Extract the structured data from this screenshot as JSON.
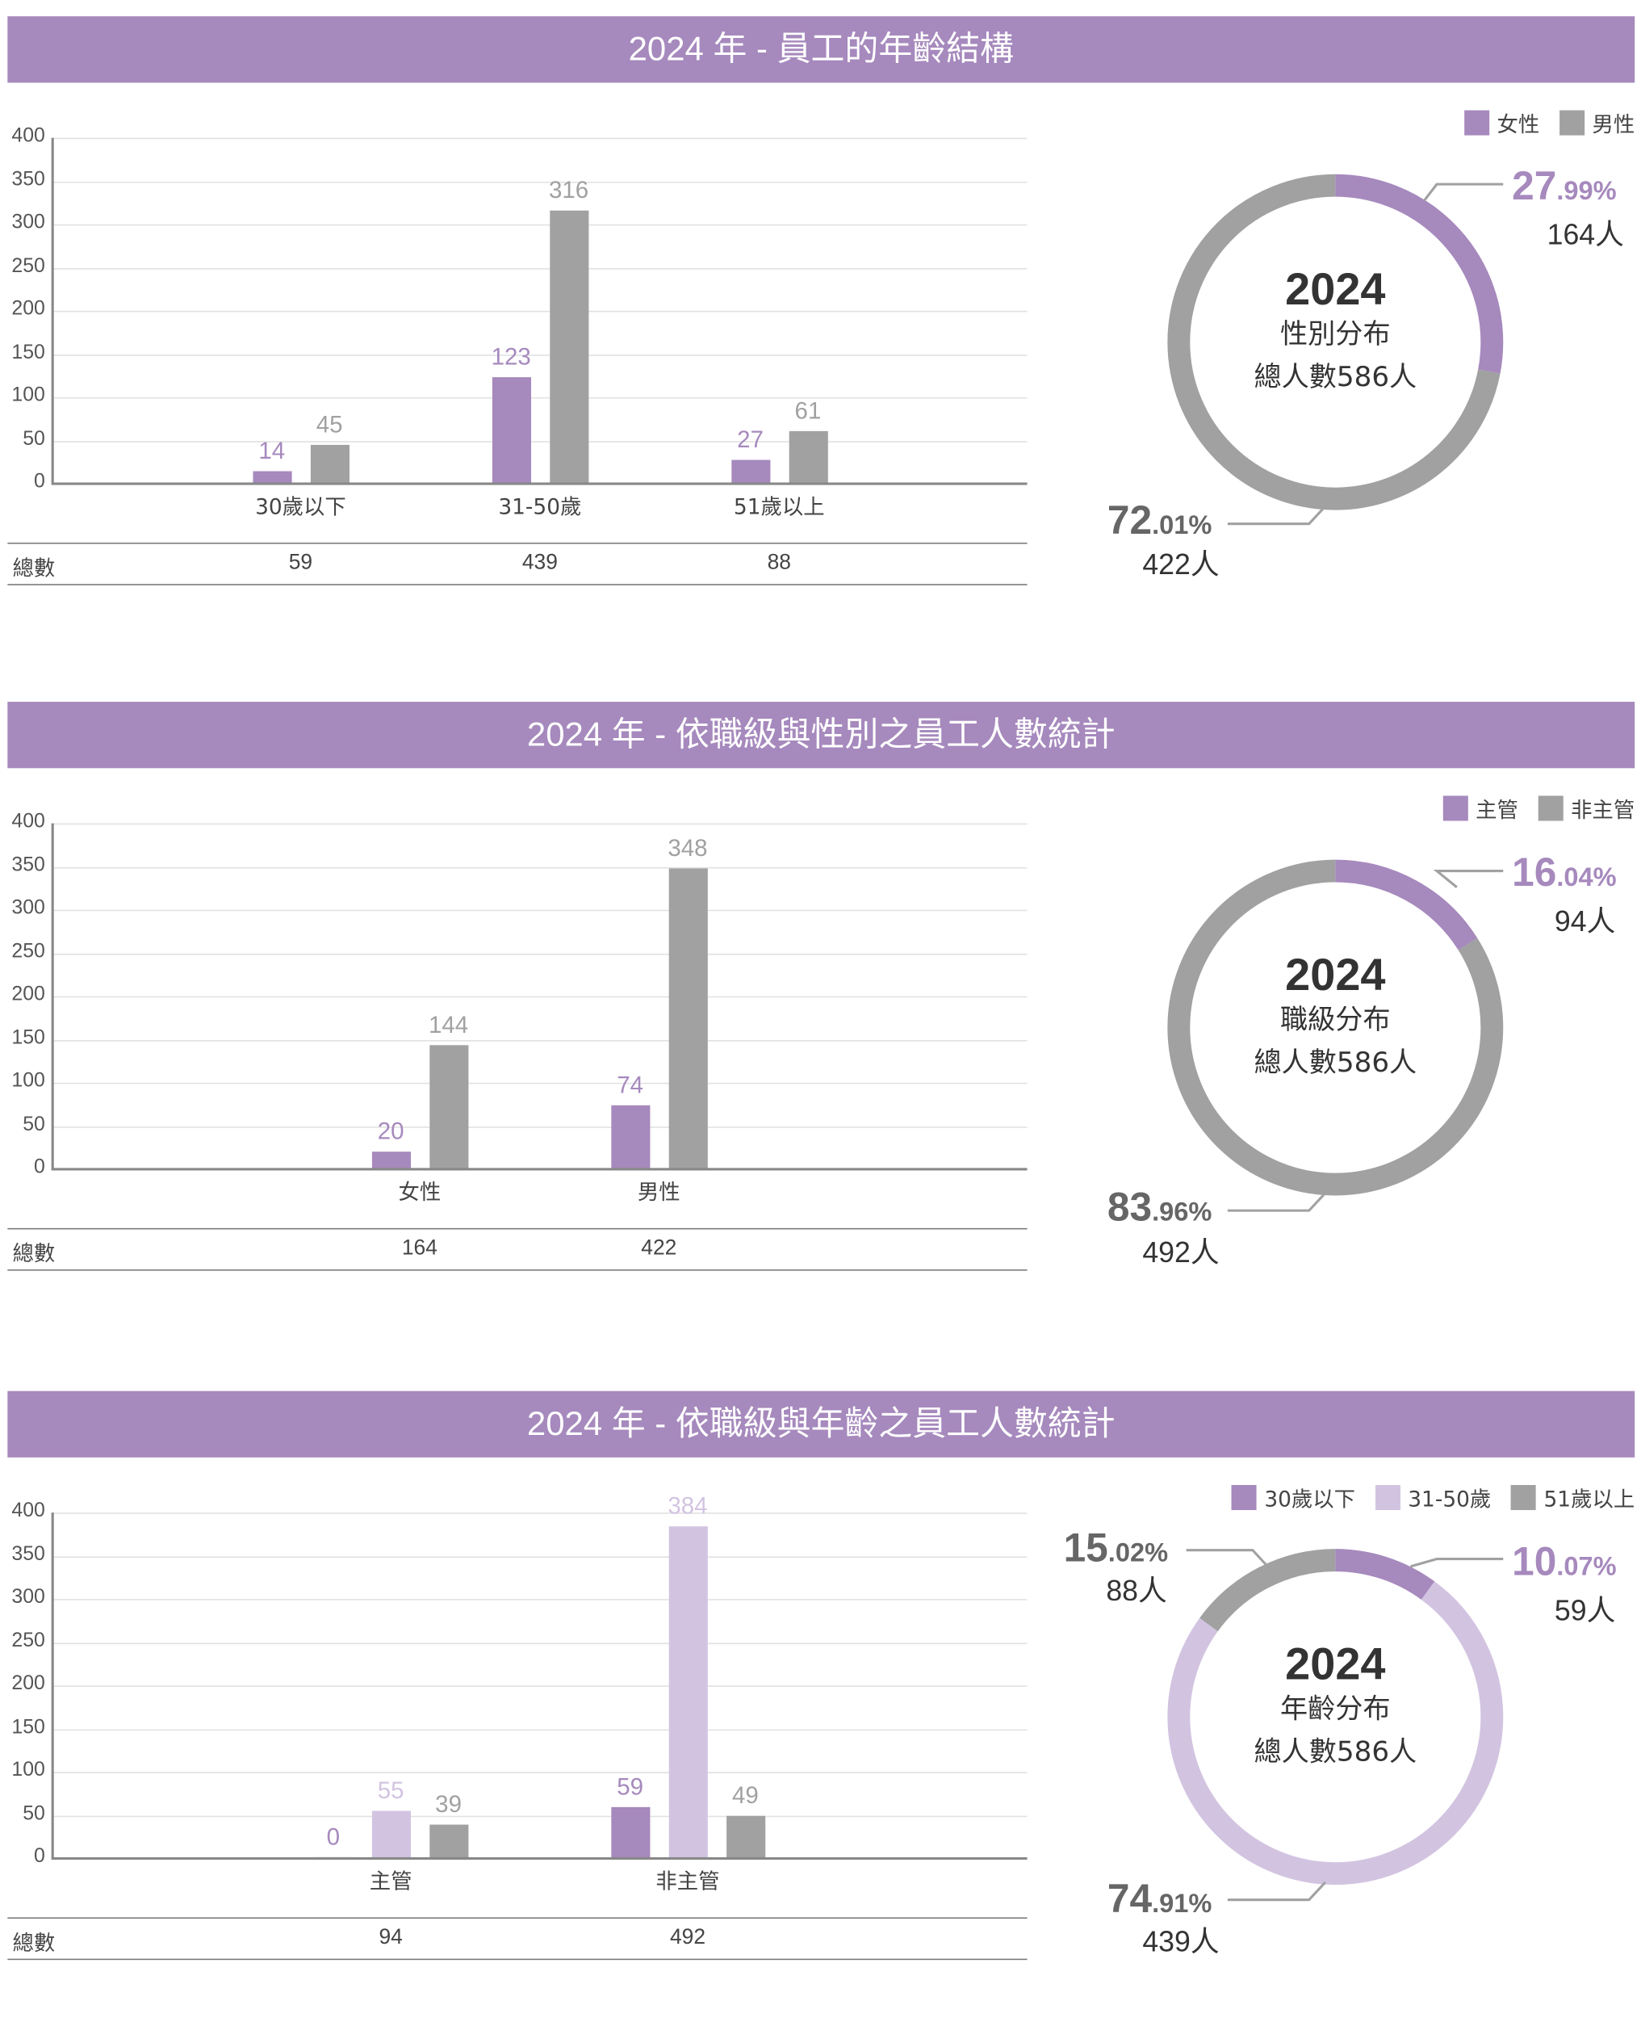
{
  "colors": {
    "header": "#a689bd",
    "purple": "#a689bd",
    "gray": "#a0a1a0",
    "light_purple": "#d2c4e1"
  },
  "sections": [
    {
      "title": "2024 年 - 員工的年齡結構",
      "legend": [
        {
          "label": "女性",
          "color": "#a689bd"
        },
        {
          "label": "男性",
          "color": "#a0a1a0"
        }
      ],
      "donut": {
        "year": "2024",
        "subtitle": "性別分布",
        "total_label": "總人數586人",
        "segments": [
          {
            "name": "女性",
            "percent": 27.99,
            "pct_int": "27",
            "pct_dec": ".99%",
            "count": "164人",
            "color": "#a689bd"
          },
          {
            "name": "男性",
            "percent": 72.01,
            "pct_int": "72",
            "pct_dec": ".01%",
            "count": "422人",
            "color": "#a0a1a0"
          }
        ]
      }
    },
    {
      "title": "2024 年 - 依職級與性別之員工人數統計",
      "legend": [
        {
          "label": "主管",
          "color": "#a689bd"
        },
        {
          "label": "非主管",
          "color": "#a0a1a0"
        }
      ],
      "donut": {
        "year": "2024",
        "subtitle": "職級分布",
        "total_label": "總人數586人",
        "segments": [
          {
            "name": "主管",
            "percent": 16.04,
            "pct_int": "16",
            "pct_dec": ".04%",
            "count": "94人",
            "color": "#a689bd"
          },
          {
            "name": "非主管",
            "percent": 83.96,
            "pct_int": "83",
            "pct_dec": ".96%",
            "count": "492人",
            "color": "#a0a1a0"
          }
        ]
      }
    },
    {
      "title": "2024 年 - 依職級與年齡之員工人數統計",
      "legend": [
        {
          "label": "30歲以下",
          "color": "#a689bd"
        },
        {
          "label": "31-50歲",
          "color": "#d2c4e1"
        },
        {
          "label": "51歲以上",
          "color": "#a0a1a0"
        }
      ],
      "donut": {
        "year": "2024",
        "subtitle": "年齡分布",
        "total_label": "總人數586人",
        "segments": [
          {
            "name": "30歲以下",
            "percent": 10.07,
            "pct_int": "10",
            "pct_dec": ".07%",
            "count": "59人",
            "color": "#a689bd"
          },
          {
            "name": "31-50歲",
            "percent": 74.91,
            "pct_int": "74",
            "pct_dec": ".91%",
            "count": "439人",
            "color": "#d2c4e1"
          },
          {
            "name": "51歲以上",
            "percent": 15.02,
            "pct_int": "15",
            "pct_dec": ".02%",
            "count": "88人",
            "color": "#a0a1a0"
          }
        ]
      }
    }
  ],
  "chart_data": [
    {
      "type": "bar",
      "title": "2024 年 - 員工的年齡結構",
      "categories": [
        "30歲以下",
        "31-50歲",
        "51歲以上"
      ],
      "series": [
        {
          "name": "女性",
          "values": [
            14,
            123,
            27
          ],
          "color": "#a689bd"
        },
        {
          "name": "男性",
          "values": [
            45,
            316,
            61
          ],
          "color": "#a0a1a0"
        }
      ],
      "yticks": [
        0,
        50,
        100,
        150,
        200,
        250,
        300,
        350,
        400
      ],
      "ylim": [
        0,
        400
      ],
      "grid": true,
      "totals_label": "總數",
      "totals": [
        59,
        439,
        88
      ]
    },
    {
      "type": "bar",
      "title": "2024 年 - 依職級與性別之員工人數統計",
      "categories": [
        "女性",
        "男性"
      ],
      "series": [
        {
          "name": "主管",
          "values": [
            20,
            74
          ],
          "color": "#a689bd"
        },
        {
          "name": "非主管",
          "values": [
            144,
            348
          ],
          "color": "#a0a1a0"
        }
      ],
      "yticks": [
        0,
        50,
        100,
        150,
        200,
        250,
        300,
        350,
        400
      ],
      "ylim": [
        0,
        400
      ],
      "grid": true,
      "totals_label": "總數",
      "totals": [
        164,
        422
      ]
    },
    {
      "type": "bar",
      "title": "2024 年 - 依職級與年齡之員工人數統計",
      "categories": [
        "主管",
        "非主管"
      ],
      "series": [
        {
          "name": "30歲以下",
          "values": [
            0,
            59
          ],
          "color": "#a689bd"
        },
        {
          "name": "31-50歲",
          "values": [
            55,
            384
          ],
          "color": "#d2c4e1"
        },
        {
          "name": "51歲以上",
          "values": [
            39,
            49
          ],
          "color": "#a0a1a0"
        }
      ],
      "yticks": [
        0,
        50,
        100,
        150,
        200,
        250,
        300,
        350,
        400
      ],
      "ylim": [
        0,
        400
      ],
      "grid": true,
      "totals_label": "總數",
      "totals": [
        94,
        492
      ]
    }
  ]
}
